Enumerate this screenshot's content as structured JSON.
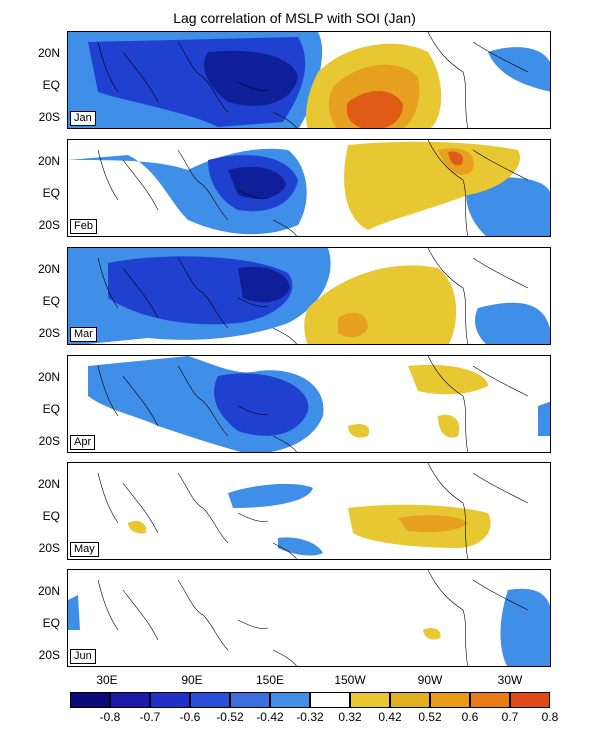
{
  "title": "Lag correlation of MSLP with SOI (Jan)",
  "panels": [
    {
      "label": "Jan"
    },
    {
      "label": "Feb"
    },
    {
      "label": "Mar"
    },
    {
      "label": "Apr"
    },
    {
      "label": "May"
    },
    {
      "label": "Jun"
    }
  ],
  "lat_labels": [
    "20N",
    "EQ",
    "20S"
  ],
  "lon_labels": [
    "30E",
    "90E",
    "150E",
    "150W",
    "90W",
    "30W"
  ],
  "colorbar": {
    "labels": [
      "-0.8",
      "-0.7",
      "-0.6",
      "-0.52",
      "-0.42",
      "-0.32",
      "0.32",
      "0.42",
      "0.52",
      "0.6",
      "0.7",
      "0.8"
    ],
    "colors": [
      "#0a0a7a",
      "#1a1aa8",
      "#2030c8",
      "#2a4fd8",
      "#3b6fe0",
      "#3f8ee8",
      "#ffffff",
      "#e8c832",
      "#e0b020",
      "#e89a18",
      "#e87a18",
      "#e04a18"
    ]
  },
  "colors": {
    "neg_strong": "#0f1f9a",
    "neg_mid": "#2040d0",
    "neg_weak": "#3f8ee8",
    "pos_weak": "#e8c832",
    "pos_mid": "#e8a020",
    "pos_strong": "#e05a18",
    "coast": "#000000"
  }
}
